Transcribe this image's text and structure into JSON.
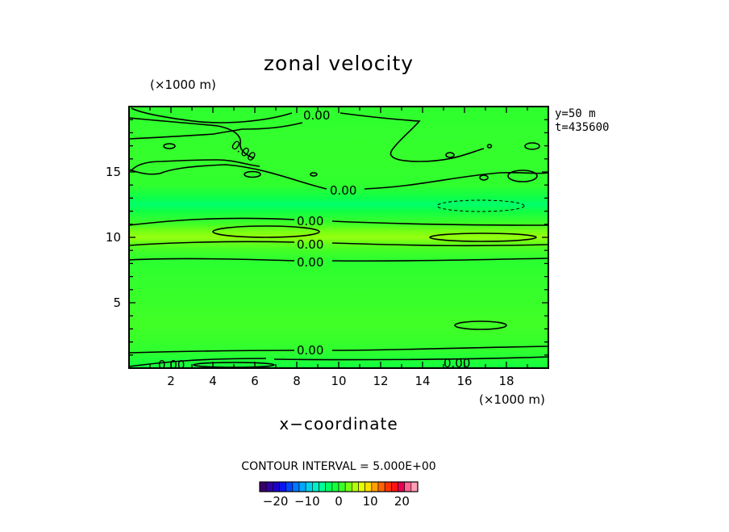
{
  "chart_data": {
    "type": "heatmap",
    "title": "zonal velocity",
    "xlabel": "x−coordinate",
    "x_unit": "(×1000 m)",
    "y_unit": "(×1000 m)",
    "xlim": [
      0,
      20
    ],
    "ylim": [
      0,
      20
    ],
    "x_ticks": [
      "2",
      "4",
      "6",
      "8",
      "10",
      "12",
      "14",
      "16",
      "18"
    ],
    "y_ticks": [
      "5",
      "10",
      "15"
    ],
    "side_info": [
      "y=50 m",
      "t=435600"
    ],
    "contour_interval_text": "CONTOUR INTERVAL = 5.000E+00",
    "contour_labels": [
      "0.00",
      "0.00",
      "0.00",
      "0.00",
      "0.00",
      "0.00",
      "0.00",
      "0.00",
      "0.00"
    ],
    "colorbar": {
      "range": [
        -25,
        25
      ],
      "tick_labels": [
        "−20",
        "−10",
        "0",
        "10",
        "20"
      ],
      "tick_values": [
        -20,
        -10,
        0,
        10,
        20
      ],
      "colors": [
        "#3a006a",
        "#3000a0",
        "#1e00c8",
        "#0a14f0",
        "#0046ff",
        "#0078ff",
        "#00a8ff",
        "#00d2f0",
        "#00f0c8",
        "#00ff96",
        "#00ff64",
        "#14ff3c",
        "#3cff28",
        "#78ff14",
        "#b4ff0a",
        "#e6ff00",
        "#ffdc00",
        "#ffa000",
        "#ff6400",
        "#ff3200",
        "#ff1414",
        "#e60050",
        "#ff6496",
        "#ffa0b4"
      ]
    },
    "profile_y": [
      0,
      1.3,
      2.5,
      3.5,
      5,
      7,
      8.2,
      9,
      9.5,
      10.0,
      10.5,
      11,
      12.0,
      12.5,
      13,
      14,
      16,
      18,
      20
    ],
    "profile_u": [
      -1.2,
      0.3,
      1.0,
      1.2,
      0.9,
      0.5,
      0.1,
      1.3,
      2.3,
      4.2,
      3.0,
      1.2,
      -1.5,
      -3.4,
      -1.8,
      0.4,
      0.6,
      0.5,
      0.3
    ],
    "grid": false
  }
}
